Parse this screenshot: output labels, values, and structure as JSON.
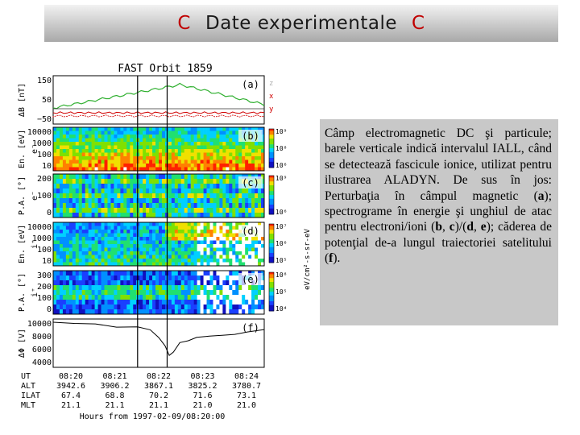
{
  "slide": {
    "title_mark_left": "C",
    "title_text": "Date experimentale",
    "title_mark_right": "C"
  },
  "figure": {
    "title": "FAST Orbit 1859",
    "panels": [
      {
        "id": "a",
        "label": "(a)",
        "ylabel": "ΔB [nT]",
        "ticks": [
          "150",
          "50",
          "−50"
        ],
        "legend": [
          "z",
          "x",
          "y"
        ],
        "legend_colors": [
          "#b0b0b0",
          "#d00000",
          "#d00000"
        ]
      },
      {
        "id": "b",
        "label": "(b)",
        "ylabel": "En. [eV]",
        "species": "e⁻",
        "ticks": [
          "10000",
          "1000",
          "100",
          "10"
        ],
        "cbar": [
          "10⁹",
          "10⁸",
          "10⁶"
        ]
      },
      {
        "id": "c",
        "label": "(c)",
        "ylabel": "P.A. [°]",
        "species": "e⁻",
        "ticks": [
          "200",
          "100",
          "0"
        ],
        "cbar": [
          "10⁹",
          "10⁶"
        ]
      },
      {
        "id": "d",
        "label": "(d)",
        "ylabel": "En. [eV]",
        "species": "i⁺",
        "ticks": [
          "10000",
          "1000",
          "100",
          "10"
        ],
        "cbar": [
          "10⁷",
          "10⁶",
          "10⁵"
        ]
      },
      {
        "id": "e",
        "label": "(e)",
        "ylabel": "P.A. [°]",
        "species": "i⁺",
        "ticks": [
          "300",
          "200",
          "100",
          "0"
        ],
        "cbar": [
          "10⁸",
          "10⁵",
          "10⁴"
        ]
      },
      {
        "id": "f",
        "label": "(f)",
        "ylabel": "ΔΦ [V]",
        "ticks": [
          "10000",
          "8000",
          "6000",
          "4000"
        ]
      }
    ],
    "cbar_axis_label": "eV/cm²-s-sr-eV",
    "ephemeris": {
      "rows": [
        "UT",
        "ALT",
        "ILAT",
        "MLT"
      ],
      "columns": [
        [
          "08:20",
          "3942.6",
          "67.4",
          "21.1"
        ],
        [
          "08:21",
          "3906.2",
          "68.8",
          "21.1"
        ],
        [
          "08:22",
          "3867.1",
          "70.2",
          "21.1"
        ],
        [
          "08:23",
          "3825.2",
          "71.6",
          "21.0"
        ],
        [
          "08:24",
          "3780.7",
          "73.1",
          "21.0"
        ]
      ]
    },
    "xlabel": "Hours from 1997-02-09/08:20:00"
  },
  "caption": {
    "part1": "Câmp electromagnetic DC şi particule; barele verticale indică intervalul IALL, când se detectează fascicule ionice, utilizat pentru ilustrarea ALADYN. De sus în jos: Perturbaţia în câmpul magnetic (",
    "a": "a",
    "part2": "); spectrograme în energie şi unghiul de atac pentru electroni/ioni (",
    "b": "b",
    "part3": ", ",
    "c": "c",
    "part4": ")/(",
    "d": "d",
    "part5": ", ",
    "e": "e",
    "part6": "); căderea de potenţial de-a lungul traiectoriei satelitului (",
    "f": "f",
    "part7": ")."
  }
}
